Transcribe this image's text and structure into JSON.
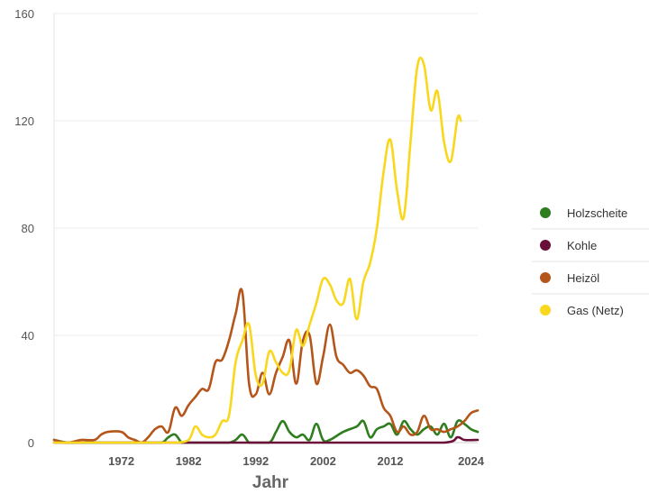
{
  "chart_data": {
    "type": "line",
    "xlabel": "Jahr",
    "ylabel": "",
    "title": "",
    "x_ticks": [
      1972,
      1982,
      1992,
      2002,
      2012,
      2024
    ],
    "y_ticks": [
      0,
      40,
      80,
      120,
      160
    ],
    "xlim": [
      1962,
      2025
    ],
    "ylim": [
      0,
      160
    ],
    "grid": "horizontal",
    "legend_position": "right",
    "series": [
      {
        "name": "Holzscheite",
        "color": "#2e7d1e",
        "values": [
          [
            1962,
            1
          ],
          [
            1964,
            0
          ],
          [
            1966,
            0
          ],
          [
            1968,
            0
          ],
          [
            1970,
            0
          ],
          [
            1972,
            0
          ],
          [
            1974,
            0
          ],
          [
            1976,
            0
          ],
          [
            1978,
            0
          ],
          [
            1979,
            2
          ],
          [
            1980,
            3
          ],
          [
            1981,
            0
          ],
          [
            1982,
            0
          ],
          [
            1984,
            0
          ],
          [
            1986,
            0
          ],
          [
            1988,
            0
          ],
          [
            1989,
            1
          ],
          [
            1990,
            3
          ],
          [
            1991,
            0
          ],
          [
            1992,
            0
          ],
          [
            1994,
            0
          ],
          [
            1995,
            4
          ],
          [
            1996,
            8
          ],
          [
            1997,
            4
          ],
          [
            1998,
            2
          ],
          [
            1999,
            3
          ],
          [
            2000,
            1
          ],
          [
            2001,
            7
          ],
          [
            2002,
            1
          ],
          [
            2003,
            1
          ],
          [
            2005,
            4
          ],
          [
            2007,
            6
          ],
          [
            2008,
            8
          ],
          [
            2009,
            2
          ],
          [
            2010,
            5
          ],
          [
            2011,
            6
          ],
          [
            2012,
            7
          ],
          [
            2013,
            3
          ],
          [
            2014,
            8
          ],
          [
            2015,
            5
          ],
          [
            2016,
            3
          ],
          [
            2017,
            5
          ],
          [
            2018,
            6
          ],
          [
            2019,
            3
          ],
          [
            2020,
            7
          ],
          [
            2021,
            2
          ],
          [
            2022,
            8
          ],
          [
            2023,
            7
          ],
          [
            2024,
            5
          ],
          [
            2025,
            4
          ]
        ]
      },
      {
        "name": "Kohle",
        "color": "#6a1038",
        "values": [
          [
            1962,
            0
          ],
          [
            1970,
            0
          ],
          [
            1980,
            0
          ],
          [
            1990,
            0
          ],
          [
            2000,
            0
          ],
          [
            2010,
            0
          ],
          [
            2020,
            0
          ],
          [
            2022,
            2
          ],
          [
            2023,
            1
          ],
          [
            2025,
            1
          ]
        ]
      },
      {
        "name": "Heizöl",
        "color": "#b4561a",
        "values": [
          [
            1962,
            1
          ],
          [
            1964,
            0
          ],
          [
            1966,
            1
          ],
          [
            1968,
            1
          ],
          [
            1969,
            3
          ],
          [
            1970,
            4
          ],
          [
            1972,
            4
          ],
          [
            1973,
            2
          ],
          [
            1974,
            1
          ],
          [
            1975,
            0
          ],
          [
            1976,
            2
          ],
          [
            1977,
            5
          ],
          [
            1978,
            6
          ],
          [
            1979,
            4
          ],
          [
            1980,
            13
          ],
          [
            1981,
            10
          ],
          [
            1982,
            14
          ],
          [
            1983,
            17
          ],
          [
            1984,
            20
          ],
          [
            1985,
            20
          ],
          [
            1986,
            30
          ],
          [
            1987,
            31
          ],
          [
            1988,
            38
          ],
          [
            1989,
            48
          ],
          [
            1990,
            56
          ],
          [
            1991,
            22
          ],
          [
            1992,
            18
          ],
          [
            1993,
            26
          ],
          [
            1994,
            18
          ],
          [
            1995,
            26
          ],
          [
            1996,
            32
          ],
          [
            1997,
            38
          ],
          [
            1998,
            22
          ],
          [
            1999,
            38
          ],
          [
            2000,
            40
          ],
          [
            2001,
            22
          ],
          [
            2002,
            32
          ],
          [
            2003,
            44
          ],
          [
            2004,
            32
          ],
          [
            2005,
            29
          ],
          [
            2006,
            26
          ],
          [
            2007,
            27
          ],
          [
            2008,
            25
          ],
          [
            2009,
            21
          ],
          [
            2010,
            20
          ],
          [
            2011,
            13
          ],
          [
            2012,
            10
          ],
          [
            2013,
            4
          ],
          [
            2014,
            6
          ],
          [
            2015,
            3
          ],
          [
            2016,
            4
          ],
          [
            2017,
            10
          ],
          [
            2018,
            5
          ],
          [
            2019,
            5
          ],
          [
            2020,
            4
          ],
          [
            2021,
            5
          ],
          [
            2022,
            6
          ],
          [
            2023,
            8
          ],
          [
            2024,
            11
          ],
          [
            2025,
            12
          ]
        ]
      },
      {
        "name": "Gas (Netz)",
        "color": "#f9d71c",
        "values": [
          [
            1962,
            0
          ],
          [
            1970,
            0
          ],
          [
            1978,
            0
          ],
          [
            1980,
            0
          ],
          [
            1982,
            1
          ],
          [
            1983,
            6
          ],
          [
            1984,
            3
          ],
          [
            1985,
            2
          ],
          [
            1986,
            3
          ],
          [
            1987,
            8
          ],
          [
            1988,
            10
          ],
          [
            1989,
            30
          ],
          [
            1990,
            38
          ],
          [
            1991,
            44
          ],
          [
            1992,
            25
          ],
          [
            1993,
            22
          ],
          [
            1994,
            34
          ],
          [
            1995,
            30
          ],
          [
            1996,
            26
          ],
          [
            1997,
            27
          ],
          [
            1998,
            42
          ],
          [
            1999,
            36
          ],
          [
            2000,
            44
          ],
          [
            2001,
            52
          ],
          [
            2002,
            61
          ],
          [
            2003,
            59
          ],
          [
            2004,
            53
          ],
          [
            2005,
            52
          ],
          [
            2006,
            61
          ],
          [
            2007,
            46
          ],
          [
            2008,
            60
          ],
          [
            2009,
            67
          ],
          [
            2010,
            80
          ],
          [
            2011,
            101
          ],
          [
            2012,
            113
          ],
          [
            2013,
            94
          ],
          [
            2014,
            84
          ],
          [
            2015,
            112
          ],
          [
            2016,
            140
          ],
          [
            2017,
            141
          ],
          [
            2018,
            124
          ],
          [
            2019,
            131
          ],
          [
            2020,
            112
          ],
          [
            2021,
            105
          ],
          [
            2022,
            121
          ],
          [
            2022.5,
            120
          ]
        ]
      }
    ]
  }
}
